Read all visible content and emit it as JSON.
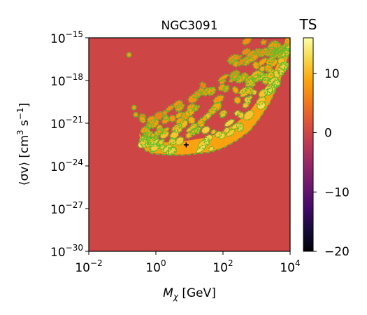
{
  "chart_data": {
    "type": "heatmap",
    "title": "NGC3091",
    "xlabel_base": "M",
    "xlabel_sub": "χ",
    "xlabel_unit": " [GeV]",
    "ylabel_left": "⟨σv⟩ [cm",
    "ylabel_sup1": "3",
    "ylabel_mid": " s",
    "ylabel_sup2": "−1",
    "ylabel_right": "]",
    "x_scale": "log",
    "y_scale": "log",
    "xlim": [
      0.01,
      10000
    ],
    "ylim": [
      1e-30,
      1e-15
    ],
    "x_ticks": [
      {
        "base": "10",
        "exp": "−2",
        "value": 0.01
      },
      {
        "base": "10",
        "exp": "0",
        "value": 1
      },
      {
        "base": "10",
        "exp": "2",
        "value": 100
      },
      {
        "base": "10",
        "exp": "4",
        "value": 10000
      }
    ],
    "y_ticks": [
      {
        "base": "10",
        "exp": "−15",
        "value": 1e-15
      },
      {
        "base": "10",
        "exp": "−18",
        "value": 1e-18
      },
      {
        "base": "10",
        "exp": "−21",
        "value": 1e-21
      },
      {
        "base": "10",
        "exp": "−24",
        "value": 1e-24
      },
      {
        "base": "10",
        "exp": "−27",
        "value": 1e-27
      },
      {
        "base": "10",
        "exp": "−30",
        "value": 1e-30
      }
    ],
    "colorbar": {
      "label": "TS",
      "range": [
        -20,
        16
      ],
      "ticks": [
        {
          "label": "10",
          "value": 10
        },
        {
          "label": "0",
          "value": 0
        },
        {
          "label": "−10",
          "value": -10
        },
        {
          "label": "−20",
          "value": -20
        }
      ],
      "colormap": "inferno"
    },
    "background_ts": 0,
    "best_fit": {
      "x": 8,
      "y": 3e-23
    },
    "contour_color": "#5cbf2a"
  }
}
